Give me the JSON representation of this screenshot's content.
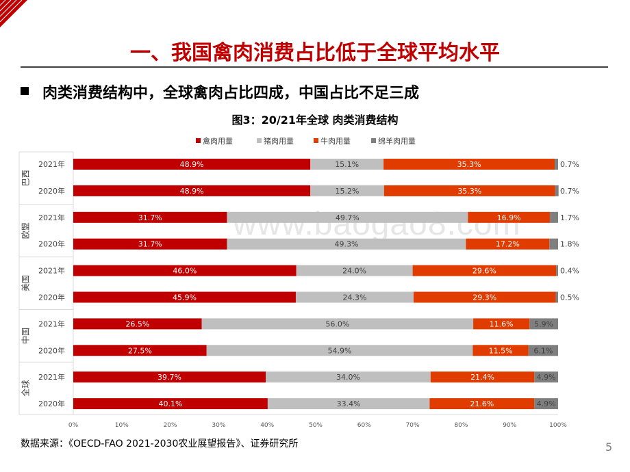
{
  "page": {
    "title": "一、我国禽肉消费占比低于全球平均水平",
    "subtitle": "肉类消费结构中，全球禽肉占比四成，中国占比不足三成",
    "source": "数据来源：《OECD-FAO 2021-2030农业展望报告》、证券研究所",
    "page_number": "5",
    "watermark": "www.baogao8.com",
    "accent_color": "#c00000"
  },
  "chart_data": {
    "type": "bar",
    "orientation": "horizontal-stacked-100",
    "title": "图3：20/21年全球  肉类消费结构",
    "legend_position": "top",
    "series": [
      {
        "name": "禽肉用量",
        "color": "#c00000"
      },
      {
        "name": "猪肉用量",
        "color": "#bfbfbf"
      },
      {
        "name": "牛肉用量",
        "color": "#e03c00"
      },
      {
        "name": "绵羊肉用量",
        "color": "#7f7f7f"
      }
    ],
    "groups": [
      {
        "name": "巴西",
        "rows": [
          {
            "year": "2021年",
            "values": [
              48.9,
              15.1,
              35.3,
              0.7
            ],
            "labels": [
              "48.9%",
              "15.1%",
              "35.3%",
              "0.7%"
            ]
          },
          {
            "year": "2020年",
            "values": [
              48.9,
              15.2,
              35.3,
              0.7
            ],
            "labels": [
              "48.9%",
              "15.2%",
              "35.3%",
              "0.7%"
            ]
          }
        ]
      },
      {
        "name": "欧盟",
        "rows": [
          {
            "year": "2021年",
            "values": [
              31.7,
              49.7,
              16.9,
              1.7
            ],
            "labels": [
              "31.7%",
              "49.7%",
              "16.9%",
              "1.7%"
            ]
          },
          {
            "year": "2020年",
            "values": [
              31.7,
              49.3,
              17.2,
              1.8
            ],
            "labels": [
              "31.7%",
              "49.3%",
              "17.2%",
              "1.8%"
            ]
          }
        ]
      },
      {
        "name": "美国",
        "rows": [
          {
            "year": "2021年",
            "values": [
              46.0,
              24.0,
              29.6,
              0.4
            ],
            "labels": [
              "46.0%",
              "24.0%",
              "29.6%",
              "0.4%"
            ]
          },
          {
            "year": "2020年",
            "values": [
              45.9,
              24.3,
              29.3,
              0.5
            ],
            "labels": [
              "45.9%",
              "24.3%",
              "29.3%",
              "0.5%"
            ]
          }
        ]
      },
      {
        "name": "中国",
        "rows": [
          {
            "year": "2021年",
            "values": [
              26.5,
              56.0,
              11.6,
              5.9
            ],
            "labels": [
              "26.5%",
              "56.0%",
              "11.6%",
              "5.9%"
            ]
          },
          {
            "year": "2020年",
            "values": [
              27.5,
              54.9,
              11.5,
              6.1
            ],
            "labels": [
              "27.5%",
              "54.9%",
              "11.5%",
              "6.1%"
            ]
          }
        ]
      },
      {
        "name": "全球",
        "rows": [
          {
            "year": "2021年",
            "values": [
              39.7,
              34.0,
              21.4,
              4.9
            ],
            "labels": [
              "39.7%",
              "34.0%",
              "21.4%",
              "4.9%"
            ]
          },
          {
            "year": "2020年",
            "values": [
              40.1,
              33.4,
              21.6,
              4.9
            ],
            "labels": [
              "40.1%",
              "33.4%",
              "21.6%",
              "4.9%"
            ]
          }
        ]
      }
    ],
    "xlim": [
      0,
      100
    ],
    "x_ticks": [
      "0%",
      "10%",
      "20%",
      "30%",
      "40%",
      "50%",
      "60%",
      "70%",
      "80%",
      "90%",
      "100%"
    ]
  }
}
